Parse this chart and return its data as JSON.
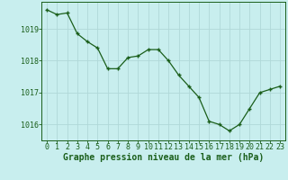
{
  "x": [
    0,
    1,
    2,
    3,
    4,
    5,
    6,
    7,
    8,
    9,
    10,
    11,
    12,
    13,
    14,
    15,
    16,
    17,
    18,
    19,
    20,
    21,
    22,
    23
  ],
  "y": [
    1019.6,
    1019.45,
    1019.5,
    1018.85,
    1018.6,
    1018.4,
    1017.75,
    1017.75,
    1018.1,
    1018.15,
    1018.35,
    1018.35,
    1018.0,
    1017.55,
    1017.2,
    1016.85,
    1016.1,
    1016.0,
    1015.8,
    1016.0,
    1016.5,
    1017.0,
    1017.1,
    1017.2
  ],
  "line_color": "#1a5e1a",
  "marker": "+",
  "background_color": "#c8eeee",
  "grid_color": "#b0d8d8",
  "xlabel": "Graphe pression niveau de la mer (hPa)",
  "xlabel_color": "#1a5e1a",
  "tick_color": "#1a5e1a",
  "ylim": [
    1015.5,
    1019.85
  ],
  "yticks": [
    1016,
    1017,
    1018,
    1019
  ],
  "xticks": [
    0,
    1,
    2,
    3,
    4,
    5,
    6,
    7,
    8,
    9,
    10,
    11,
    12,
    13,
    14,
    15,
    16,
    17,
    18,
    19,
    20,
    21,
    22,
    23
  ],
  "axis_label_fontsize": 7.0,
  "tick_fontsize": 6.0
}
